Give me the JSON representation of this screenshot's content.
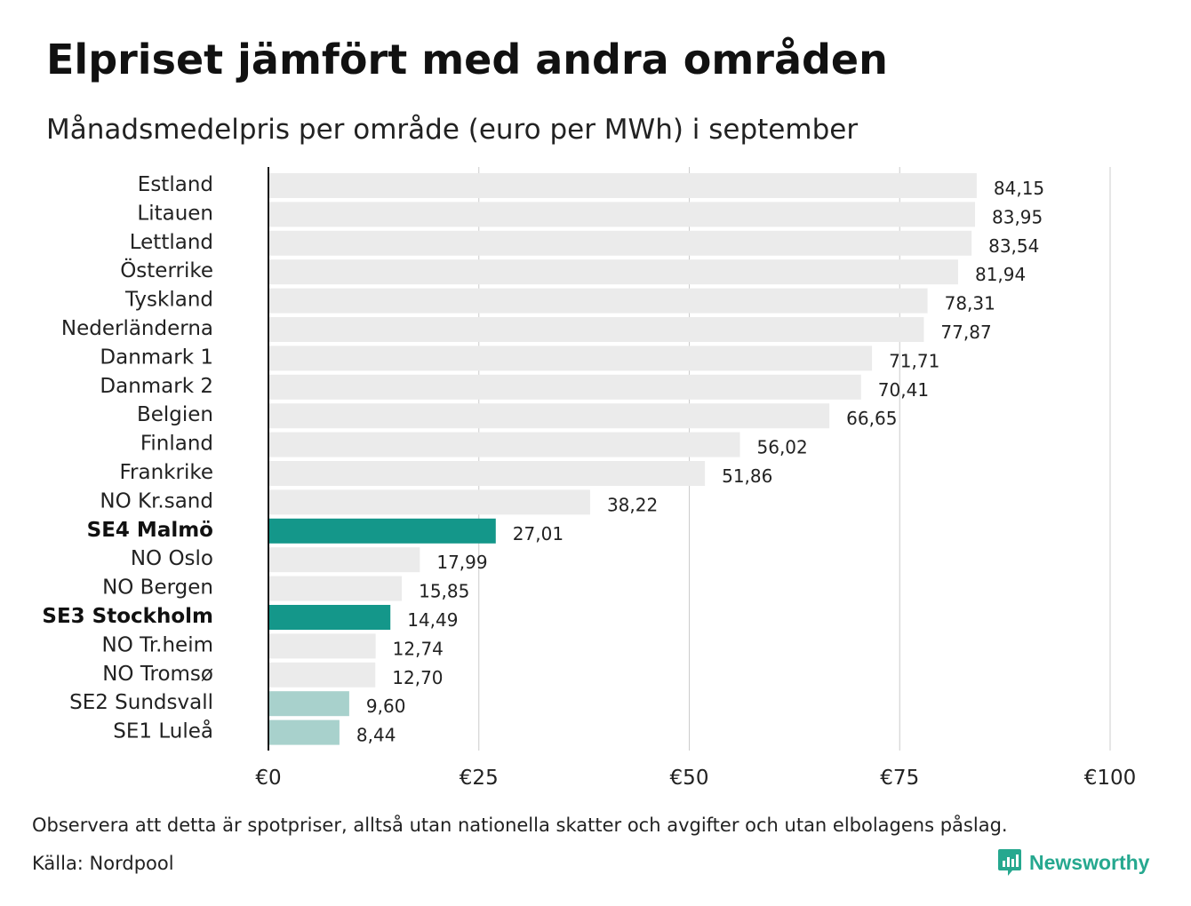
{
  "header": {
    "title": "Elpriset jämfört med andra områden",
    "subtitle": "Månadsmedelpris per område (euro per MWh) i september"
  },
  "chart_data": {
    "type": "bar",
    "orientation": "horizontal",
    "title": "Elpriset jämfört med andra områden",
    "subtitle": "Månadsmedelpris per område (euro per MWh) i september",
    "categories": [
      "Estland",
      "Litauen",
      "Lettland",
      "Österrike",
      "Tyskland",
      "Nederländerna",
      "Danmark 1",
      "Danmark 2",
      "Belgien",
      "Finland",
      "Frankrike",
      "NO Kr.sand",
      "SE4 Malmö",
      "NO Oslo",
      "NO Bergen",
      "SE3 Stockholm",
      "NO Tr.heim",
      "NO Tromsø",
      "SE2 Sundsvall",
      "SE1 Luleå"
    ],
    "values": [
      84.15,
      83.95,
      83.54,
      81.94,
      78.31,
      77.87,
      71.71,
      70.41,
      66.65,
      56.02,
      51.86,
      38.22,
      27.01,
      17.99,
      15.85,
      14.49,
      12.74,
      12.7,
      9.6,
      8.44
    ],
    "value_labels": [
      "84,15",
      "83,95",
      "83,54",
      "81,94",
      "78,31",
      "77,87",
      "71,71",
      "70,41",
      "66,65",
      "56,02",
      "51,86",
      "38,22",
      "27,01",
      "17,99",
      "15,85",
      "14,49",
      "12,74",
      "12,70",
      "9,60",
      "8,44"
    ],
    "highlight": [
      "normal",
      "normal",
      "normal",
      "normal",
      "normal",
      "normal",
      "normal",
      "normal",
      "normal",
      "normal",
      "normal",
      "normal",
      "strong",
      "normal",
      "normal",
      "strong",
      "normal",
      "normal",
      "light",
      "light"
    ],
    "bold_labels": [
      "SE4 Malmö",
      "SE3 Stockholm"
    ],
    "colors": {
      "normal": "#ebebeb",
      "strong": "#14978a",
      "light": "#a8d1cc",
      "grid": "#cccccc",
      "axis": "#111111"
    },
    "xlim": [
      0,
      100
    ],
    "xticks": [
      0,
      25,
      50,
      75,
      100
    ],
    "xtick_labels": [
      "€0",
      "€25",
      "€50",
      "€75",
      "€100"
    ],
    "grid": true
  },
  "footer": {
    "note": "Observera att detta är spotpriser, alltså utan nationella skatter och avgifter och utan elbolagens påslag.",
    "source": "Källa: Nordpool",
    "brand": "Newsworthy",
    "brand_icon": "newsworthy-logo-icon",
    "brand_color": "#26a88f"
  }
}
